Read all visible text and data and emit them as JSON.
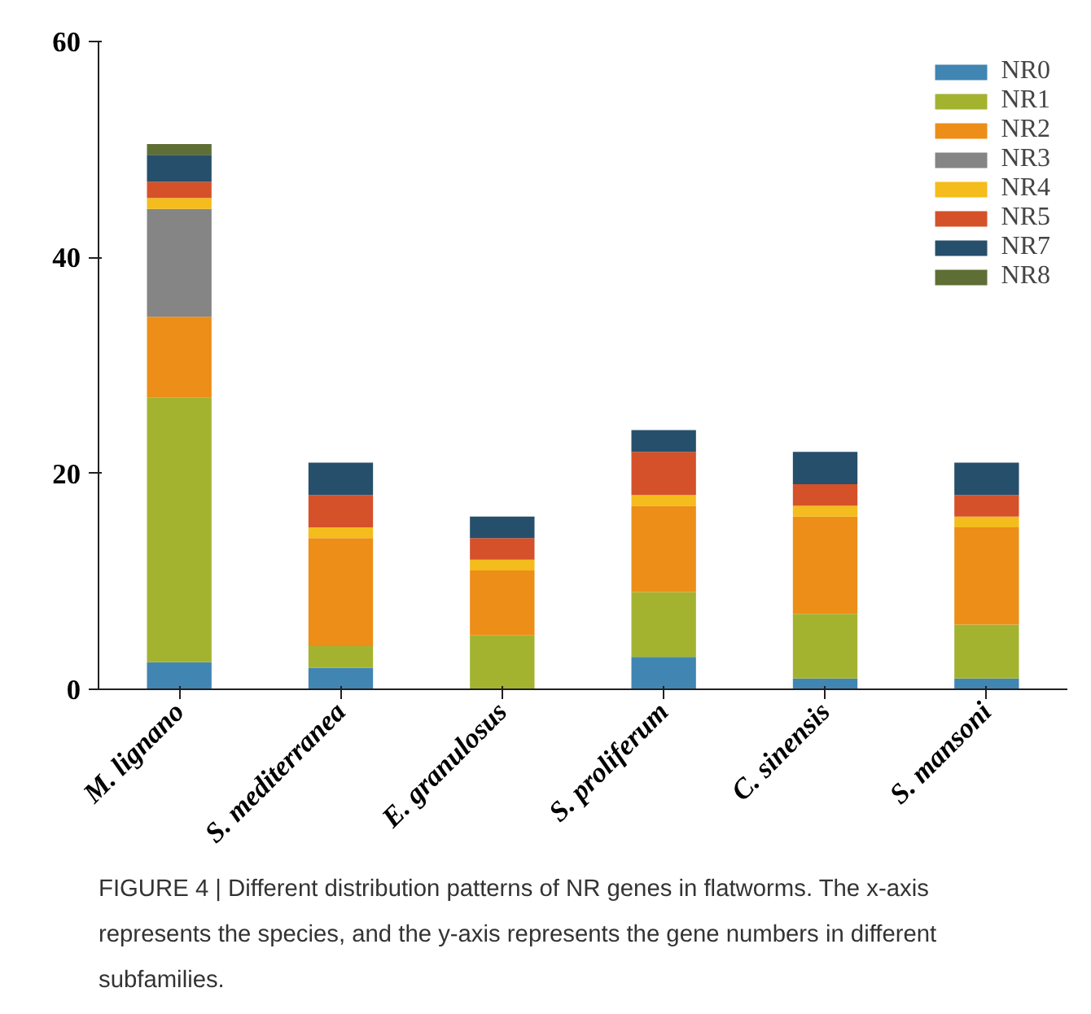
{
  "chart_data": {
    "type": "bar",
    "stacked": true,
    "categories": [
      "M. lignano",
      "S. mediterranea",
      "E. granulosus",
      "S. proliferum",
      "C. sinensis",
      "S. mansoni"
    ],
    "series": [
      {
        "name": "NR0",
        "color": "#4185b2",
        "values": [
          2.5,
          2,
          0,
          3,
          1,
          1
        ]
      },
      {
        "name": "NR1",
        "color": "#a3b330",
        "values": [
          24.5,
          2,
          5,
          6,
          6,
          5
        ]
      },
      {
        "name": "NR2",
        "color": "#ec8e17",
        "values": [
          7.5,
          10,
          6,
          8,
          9,
          9
        ]
      },
      {
        "name": "NR3",
        "color": "#858585",
        "values": [
          10,
          0,
          0,
          0,
          0,
          0
        ]
      },
      {
        "name": "NR4",
        "color": "#f4bc1c",
        "values": [
          1,
          1,
          1,
          1,
          1,
          1
        ]
      },
      {
        "name": "NR5",
        "color": "#d4512a",
        "values": [
          1.5,
          3,
          2,
          4,
          2,
          2
        ]
      },
      {
        "name": "NR7",
        "color": "#264f6b",
        "values": [
          2.5,
          3,
          2,
          2,
          3,
          3
        ]
      },
      {
        "name": "NR8",
        "color": "#5f6e34",
        "values": [
          1,
          0,
          0,
          0,
          0,
          0
        ]
      }
    ],
    "ylim": [
      0,
      60
    ],
    "yticks": [
      0,
      20,
      40,
      60
    ],
    "grid": false,
    "legend": "top right",
    "annotations": [
      "FIGURE 4 | Different distribution patterns of NR genes in flatworms. The x-axis represents the species, and the y-axis represents the gene numbers in different subfamilies."
    ]
  }
}
